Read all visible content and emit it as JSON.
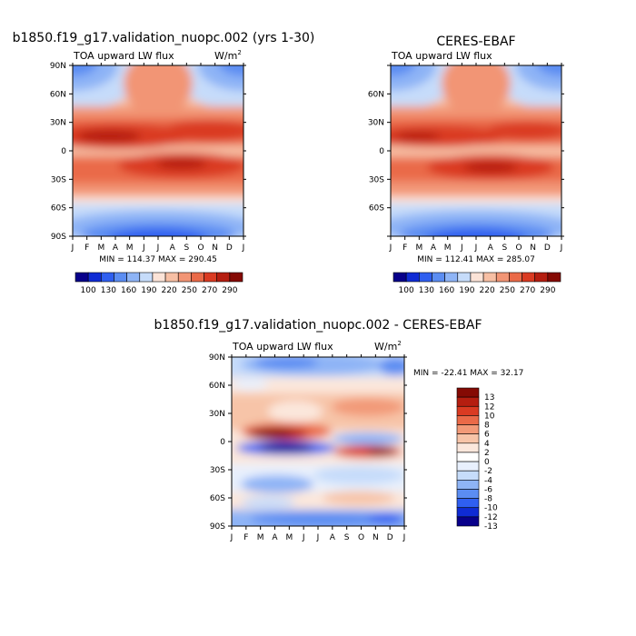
{
  "figure": {
    "panel_left_title": "b1850.f19_g17.validation_nuopc.002 (yrs 1-30)",
    "panel_right_title": "CERES-EBAF",
    "panel_diff_title": "b1850.f19_g17.validation_nuopc.002 - CERES-EBAF"
  },
  "colors": {
    "sequential_scale": [
      "#08008a",
      "#0f2bd4",
      "#2f5ff0",
      "#5b8df2",
      "#8eb4f6",
      "#c6dcfa",
      "#fbe3d7",
      "#f7bfa4",
      "#f29575",
      "#ea6a48",
      "#da3b22",
      "#b51e10",
      "#850a04"
    ],
    "diverging_scale": [
      "#08008a",
      "#0f2bd4",
      "#2f5ff0",
      "#5b8df2",
      "#8eb4f6",
      "#c6dcfa",
      "#e8f0fd",
      "#ffffff",
      "#fbe7dc",
      "#f7c4a8",
      "#f29a78",
      "#ea6a48",
      "#da3b22",
      "#b51e10",
      "#850a04"
    ]
  },
  "chart_data": [
    {
      "type": "heatmap",
      "panel": "model",
      "title": "b1850.f19_g17.validation_nuopc.002 (yrs 1-30)",
      "subtitle_left": "TOA upward LW flux",
      "units_base": "W/m",
      "units_exp": "2",
      "x_ticks": [
        "J",
        "F",
        "M",
        "A",
        "M",
        "J",
        "J",
        "A",
        "S",
        "O",
        "N",
        "D",
        "J"
      ],
      "y_ticks": [
        "90N",
        "60N",
        "30N",
        "0",
        "30S",
        "60S",
        "90S"
      ],
      "stats": "MIN = 114.37 MAX = 290.45",
      "min": 114.37,
      "max": 290.45,
      "colorbar_labels": [
        "100",
        "130",
        "160",
        "190",
        "220",
        "250",
        "270",
        "290"
      ]
    },
    {
      "type": "heatmap",
      "panel": "observations",
      "title": "CERES-EBAF",
      "subtitle_left": "TOA upward LW flux",
      "x_ticks": [
        "J",
        "F",
        "M",
        "A",
        "M",
        "J",
        "J",
        "A",
        "S",
        "O",
        "N",
        "D",
        "J"
      ],
      "y_ticks": [
        "",
        "60N",
        "30N",
        "0",
        "30S",
        "60S",
        ""
      ],
      "stats": "MIN = 112.41 MAX = 285.07",
      "min": 112.41,
      "max": 285.07,
      "colorbar_labels": [
        "100",
        "130",
        "160",
        "190",
        "220",
        "250",
        "270",
        "290"
      ]
    },
    {
      "type": "heatmap",
      "panel": "difference",
      "title": "b1850.f19_g17.validation_nuopc.002 - CERES-EBAF",
      "subtitle_left": "TOA upward LW flux",
      "units_base": "W/m",
      "units_exp": "2",
      "x_ticks": [
        "J",
        "F",
        "M",
        "A",
        "M",
        "J",
        "J",
        "A",
        "S",
        "O",
        "N",
        "D",
        "J"
      ],
      "y_ticks": [
        "90N",
        "60N",
        "30N",
        "0",
        "30S",
        "60S",
        "90S"
      ],
      "stats": "MIN = -22.41 MAX = 32.17",
      "min": -22.41,
      "max": 32.17,
      "colorbar_labels": [
        "13",
        "12",
        "10",
        "8",
        "6",
        "4",
        "2",
        "0",
        "-2",
        "-4",
        "-6",
        "-8",
        "-10",
        "-12",
        "-13"
      ]
    }
  ]
}
